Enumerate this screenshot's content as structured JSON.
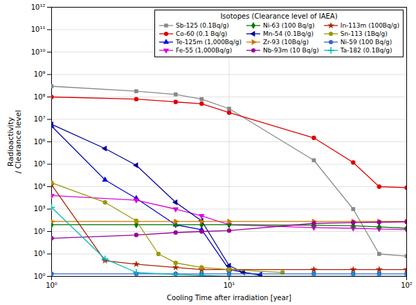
{
  "chart_data": {
    "type": "line",
    "title": "Isotopes (Clearance level of IAEA)",
    "xlabel": "Cooling Time after irradiation [year]",
    "ylabel": "Radioactivity\n/ Clearance level",
    "log": true,
    "grid": true,
    "legend": "upper right",
    "xlim": [
      1,
      100
    ],
    "ylim": [
      1,
      1000000000000.0
    ],
    "xticks": [
      {
        "value": 1,
        "label": "10⁰"
      },
      {
        "value": 10,
        "label": "10¹"
      },
      {
        "value": 100,
        "label": "10²"
      }
    ],
    "yticks": [
      {
        "value": 1,
        "label": "10⁰"
      },
      {
        "value": 10,
        "label": "10¹"
      },
      {
        "value": 100,
        "label": "10²"
      },
      {
        "value": 1000,
        "label": "10³"
      },
      {
        "value": 10000,
        "label": "10⁴"
      },
      {
        "value": 100000,
        "label": "10⁵"
      },
      {
        "value": 1000000,
        "label": "10⁶"
      },
      {
        "value": 10000000,
        "label": "10⁷"
      },
      {
        "value": 100000000,
        "label": "10⁸"
      },
      {
        "value": 1000000000,
        "label": "10⁹"
      },
      {
        "value": 10000000000,
        "label": "10¹⁰"
      },
      {
        "value": 100000000000,
        "label": "10¹¹"
      },
      {
        "value": 1000000000000,
        "label": "10¹²"
      }
    ],
    "series": [
      {
        "name": "Sb-125 (0.1Bq/g)",
        "color": "#888888",
        "marker": "square",
        "x": [
          1,
          3,
          5,
          7,
          10,
          30,
          50,
          70,
          100
        ],
        "values": [
          300000000.0,
          180000000.0,
          130000000.0,
          80000000.0,
          30000000.0,
          150000.0,
          1000.0,
          10,
          8
        ]
      },
      {
        "name": "Co-60 (0.1 Bq/g)",
        "color": "#dd0000",
        "marker": "circle",
        "x": [
          1,
          3,
          5,
          7,
          10,
          30,
          50,
          70,
          100
        ],
        "values": [
          100000000.0,
          80000000.0,
          60000000.0,
          50000000.0,
          20000000.0,
          1500000.0,
          120000.0,
          10000.0,
          9000.0
        ]
      },
      {
        "name": "Te-125m (1,000Bq/g)",
        "color": "#0000dd",
        "marker": "triangle-up",
        "x": [
          1,
          2,
          3,
          5,
          7,
          10,
          15
        ],
        "values": [
          5000000.0,
          20000.0,
          3000.0,
          200.0,
          120.0,
          2.0,
          1.1
        ]
      },
      {
        "name": "Fe-55 (1,000Bq/g)",
        "color": "#dd00dd",
        "marker": "triangle-down",
        "x": [
          1,
          3,
          5,
          7,
          10,
          30,
          50,
          70,
          100
        ],
        "values": [
          4000.0,
          2500.0,
          1000.0,
          500.0,
          200.0,
          150.0,
          140.0,
          130.0,
          120.0
        ]
      },
      {
        "name": "Ni-63 (100 Bq/g)",
        "color": "#007700",
        "marker": "diamond",
        "x": [
          1,
          3,
          5,
          7,
          10,
          30,
          50,
          70,
          100
        ],
        "values": [
          200.0,
          200.0,
          200.0,
          200.0,
          200.0,
          190.0,
          180.0,
          160.0,
          140.0
        ]
      },
      {
        "name": "Mn-54 (0.1Bq/g)",
        "color": "#000099",
        "marker": "triangle-left",
        "x": [
          1,
          2,
          3,
          5,
          7,
          10,
          12,
          15
        ],
        "values": [
          6000000.0,
          500000.0,
          90000.0,
          2000.0,
          300.0,
          3.0,
          1.5,
          1.2
        ]
      },
      {
        "name": "Zr-93 (10Bq/g)",
        "color": "#cc7700",
        "marker": "triangle-right",
        "x": [
          1,
          3,
          5,
          7,
          10,
          30,
          50,
          70,
          100
        ],
        "values": [
          280.0,
          280.0,
          280.0,
          280.0,
          280.0,
          280.0,
          280.0,
          280.0,
          280.0
        ]
      },
      {
        "name": "Nb-93m (10 Bq/g)",
        "color": "#990099",
        "marker": "circle",
        "x": [
          1,
          3,
          5,
          7,
          10,
          30,
          50,
          70,
          100
        ],
        "values": [
          50,
          70,
          90,
          100.0,
          110.0,
          230.0,
          250.0,
          260.0,
          270.0
        ]
      },
      {
        "name": "In-113m (100Bq/g)",
        "color": "#aa2200",
        "marker": "star",
        "x": [
          1,
          2,
          3,
          5,
          7,
          10,
          30,
          50,
          70,
          100
        ],
        "values": [
          12000.0,
          5,
          3.5,
          2.5,
          2.0,
          2.0,
          2.0,
          2.0,
          2.0,
          2.0
        ]
      },
      {
        "name": "Sn-113 (1Bq/g)",
        "color": "#999900",
        "marker": "circle",
        "x": [
          1,
          2,
          3,
          4,
          5,
          7,
          10,
          20
        ],
        "values": [
          15000.0,
          2000.0,
          300.0,
          10,
          4.0,
          2.5,
          2.0,
          1.5
        ]
      },
      {
        "name": "Ni-59 (100 Bq/g)",
        "color": "#3366cc",
        "marker": "circle",
        "x": [
          1,
          3,
          5,
          7,
          10,
          30,
          50,
          70,
          100
        ],
        "values": [
          1.3,
          1.3,
          1.3,
          1.3,
          1.3,
          1.3,
          1.3,
          1.3,
          1.3
        ]
      },
      {
        "name": "Ta-182 (0.1Bq/g)",
        "color": "#00bbbb",
        "marker": "plus",
        "x": [
          1,
          2,
          3,
          5,
          7,
          10,
          30,
          50,
          70,
          100
        ],
        "values": [
          1200.0,
          6,
          1.5,
          1.2,
          1.1,
          1.0,
          1.0,
          1.0,
          1.0,
          1.0
        ]
      }
    ]
  }
}
